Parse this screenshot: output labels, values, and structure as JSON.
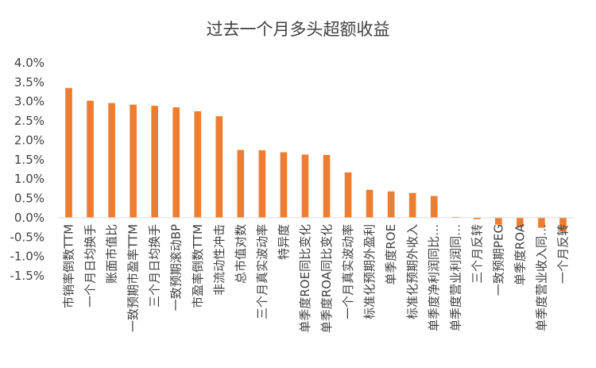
{
  "chart_data": {
    "type": "bar",
    "title": "过去一个月多头超额收益",
    "xlabel": "",
    "ylabel": "",
    "ylim": [
      -1.5,
      4.0
    ],
    "ytick_step": 0.5,
    "ytick_labels": [
      "4.0%",
      "3.5%",
      "3.0%",
      "2.5%",
      "2.0%",
      "1.5%",
      "1.0%",
      "0.5%",
      "0.0%",
      "-0.5%",
      "-1.0%",
      "-1.5%"
    ],
    "grid": false,
    "legend": "none",
    "bar_color": "#ED7D31",
    "categories": [
      "市销率倒数TTM",
      "一个月日均换手",
      "账面市值比",
      "一致预期市盈率TTM",
      "三个月日均换手",
      "一致预期滚动BP",
      "市盈率倒数TTM",
      "非流动性冲击",
      "总市值对数",
      "三个月真实波动率",
      "特异度",
      "单季度ROE同比变化",
      "单季度ROA同比变化",
      "一个月真实波动率",
      "标准化预期外盈利",
      "单季度ROE",
      "标准化预期外收入",
      "单季度净利润同比…",
      "单季度营业利润同…",
      "三个月反转",
      "一致预期PEG",
      "单季度ROA",
      "单季度营业收入同…",
      "一个月反转"
    ],
    "values": [
      3.35,
      3.02,
      2.96,
      2.92,
      2.89,
      2.85,
      2.75,
      2.62,
      1.75,
      1.74,
      1.69,
      1.63,
      1.62,
      1.17,
      0.72,
      0.68,
      0.64,
      0.56,
      0.02,
      -0.04,
      -0.18,
      -0.24,
      -0.26,
      -0.36
    ]
  }
}
